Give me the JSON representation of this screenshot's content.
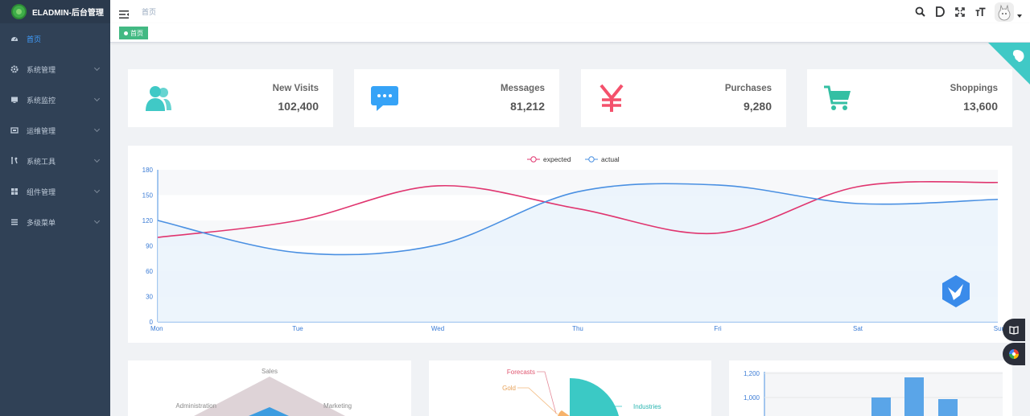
{
  "app": {
    "title": "ELADMIN-后台管理"
  },
  "sidebar": {
    "items": [
      {
        "label": "首页",
        "icon": "dashboard-icon",
        "active": true
      },
      {
        "label": "系统管理",
        "icon": "gear-icon"
      },
      {
        "label": "系统监控",
        "icon": "monitor-icon"
      },
      {
        "label": "运维管理",
        "icon": "server-icon"
      },
      {
        "label": "系统工具",
        "icon": "tools-icon"
      },
      {
        "label": "组件管理",
        "icon": "grid-icon"
      },
      {
        "label": "多级菜单",
        "icon": "menu-icon"
      }
    ]
  },
  "navbar": {
    "breadcrumb": "首页"
  },
  "tags": {
    "active": "首页"
  },
  "panels": [
    {
      "title": "New Visits",
      "value": "102,400",
      "icon": "users-icon",
      "color": "#40c9c6"
    },
    {
      "title": "Messages",
      "value": "81,212",
      "icon": "message-icon",
      "color": "#36a3f7"
    },
    {
      "title": "Purchases",
      "value": "9,280",
      "icon": "yen-icon",
      "color": "#f4516c"
    },
    {
      "title": "Shoppings",
      "value": "13,600",
      "icon": "cart-icon",
      "color": "#34bfa3"
    }
  ],
  "chart_data": [
    {
      "type": "line",
      "categories": [
        "Mon",
        "Tue",
        "Wed",
        "Thu",
        "Fri",
        "Sat",
        "Sun"
      ],
      "ylim": [
        0,
        180
      ],
      "yticks": [
        0,
        30,
        60,
        90,
        120,
        150,
        180
      ],
      "legend_position": "top-center",
      "series": [
        {
          "name": "expected",
          "values": [
            100,
            120,
            161,
            134,
            105,
            160,
            165
          ],
          "color": "#e0356f"
        },
        {
          "name": "actual",
          "values": [
            120,
            82,
            91,
            154,
            162,
            140,
            145
          ],
          "color": "#4a90e2"
        }
      ]
    },
    {
      "type": "radar",
      "indicators": [
        "Sales",
        "Administration",
        "Marketing"
      ]
    },
    {
      "type": "pie",
      "labels": [
        "Forecasts",
        "Gold",
        "Industries"
      ]
    },
    {
      "type": "bar",
      "yticks_visible": [
        "1,200",
        "1,000"
      ]
    }
  ]
}
